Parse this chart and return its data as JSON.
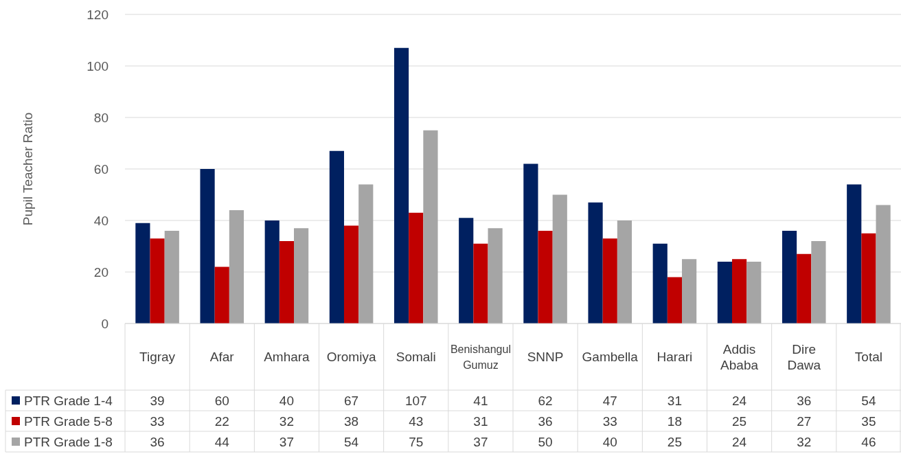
{
  "chart_data": {
    "type": "bar",
    "ylabel": "Pupil Teacher Ratio",
    "categories": [
      "Tigray",
      "Afar",
      "Amhara",
      "Oromiya",
      "Somali",
      "Benishangul Gumuz",
      "SNNP",
      "Gambella",
      "Harari",
      "Addis Ababa",
      "Dire Dawa",
      "Total"
    ],
    "series": [
      {
        "name": "PTR Grade 1-4",
        "color": "#002060",
        "values": [
          39,
          60,
          40,
          67,
          107,
          41,
          62,
          47,
          31,
          24,
          36,
          54
        ]
      },
      {
        "name": "PTR Grade 5-8",
        "color": "#c00000",
        "values": [
          33,
          22,
          32,
          38,
          43,
          31,
          36,
          33,
          18,
          25,
          27,
          35
        ]
      },
      {
        "name": "PTR Grade 1-8",
        "color": "#a5a5a5",
        "values": [
          36,
          44,
          37,
          54,
          75,
          37,
          50,
          40,
          25,
          24,
          32,
          46
        ]
      }
    ],
    "ylim": [
      0,
      120
    ],
    "yticks": [
      0,
      20,
      40,
      60,
      80,
      100,
      120
    ],
    "grid": "y",
    "data_labels": true,
    "legend": "bottom left"
  }
}
